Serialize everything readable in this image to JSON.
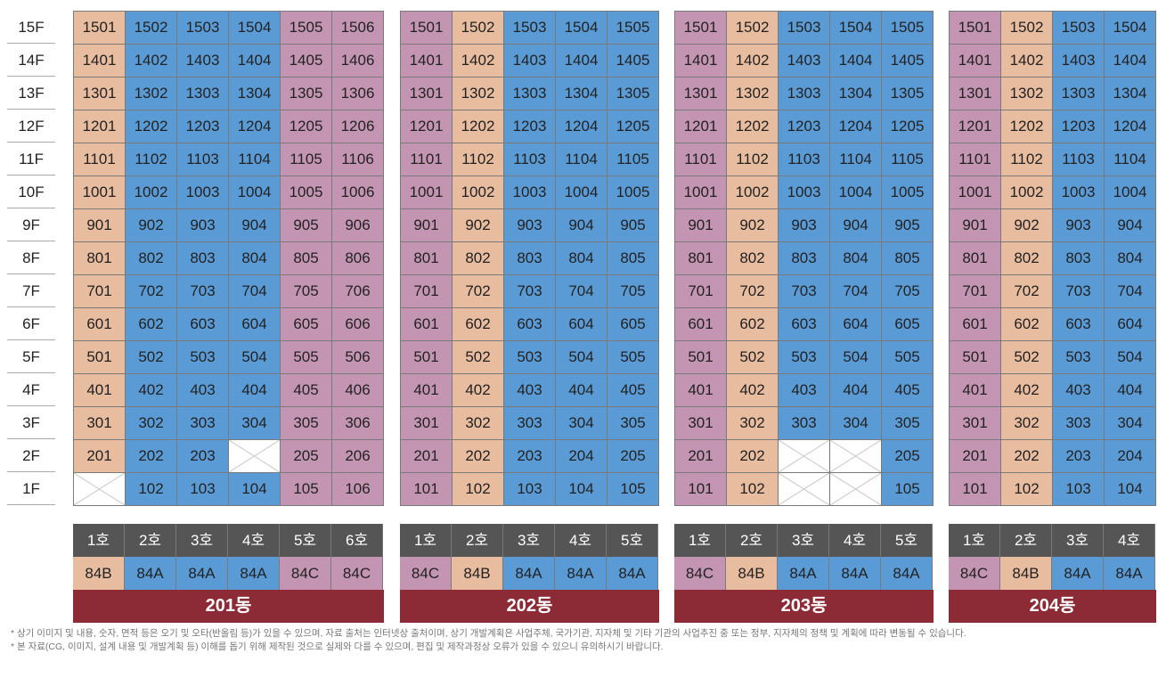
{
  "colors": {
    "peach": "#e8bc9f",
    "blue": "#5b9bd5",
    "mauve": "#c495b2",
    "header": "#555555",
    "banner": "#8c2a35"
  },
  "floors": [
    "15F",
    "14F",
    "13F",
    "12F",
    "11F",
    "10F",
    "9F",
    "8F",
    "7F",
    "6F",
    "5F",
    "4F",
    "3F",
    "2F",
    "1F"
  ],
  "buildings": [
    {
      "name": "201동",
      "units": [
        "1호",
        "2호",
        "3호",
        "4호",
        "5호",
        "6호"
      ],
      "types": [
        "84B",
        "84A",
        "84A",
        "84A",
        "84C",
        "84C"
      ],
      "colors": [
        "peach",
        "blue",
        "blue",
        "blue",
        "mauve",
        "mauve"
      ],
      "empty": {
        "1": [
          1
        ],
        "2": [
          4
        ]
      }
    },
    {
      "name": "202동",
      "units": [
        "1호",
        "2호",
        "3호",
        "4호",
        "5호"
      ],
      "types": [
        "84C",
        "84B",
        "84A",
        "84A",
        "84A"
      ],
      "colors": [
        "mauve",
        "peach",
        "blue",
        "blue",
        "blue"
      ],
      "empty": {}
    },
    {
      "name": "203동",
      "units": [
        "1호",
        "2호",
        "3호",
        "4호",
        "5호"
      ],
      "types": [
        "84C",
        "84B",
        "84A",
        "84A",
        "84A"
      ],
      "colors": [
        "mauve",
        "peach",
        "blue",
        "blue",
        "blue"
      ],
      "empty": {
        "1": [
          3,
          4
        ],
        "2": [
          3,
          4
        ]
      }
    },
    {
      "name": "204동",
      "units": [
        "1호",
        "2호",
        "3호",
        "4호"
      ],
      "types": [
        "84C",
        "84B",
        "84A",
        "84A"
      ],
      "colors": [
        "mauve",
        "peach",
        "blue",
        "blue"
      ],
      "empty": {}
    }
  ],
  "notes": [
    "* 상기 이미지 및 내용, 숫자, 면적 등은 오기 및 오타(반올림 등)가 있을 수 있으며, 자료 출처는 인터넷상 출처이며, 상기 개발계획은 사업주체, 국가기관, 지자체 및 기타 기관의 사업추진 중 또는 정부, 지자체의 정책 및 계획에 따라 변동될 수 있습니다.",
    "* 본 자료(CG, 이미지, 설계 내용 및 개발계획 등) 이해를 돕기 위해 제작된 것으로 실제와 다를 수 있으며, 편집 및 제작과정상 오류가 있을 수 있으니 유의하시기 바랍니다."
  ]
}
